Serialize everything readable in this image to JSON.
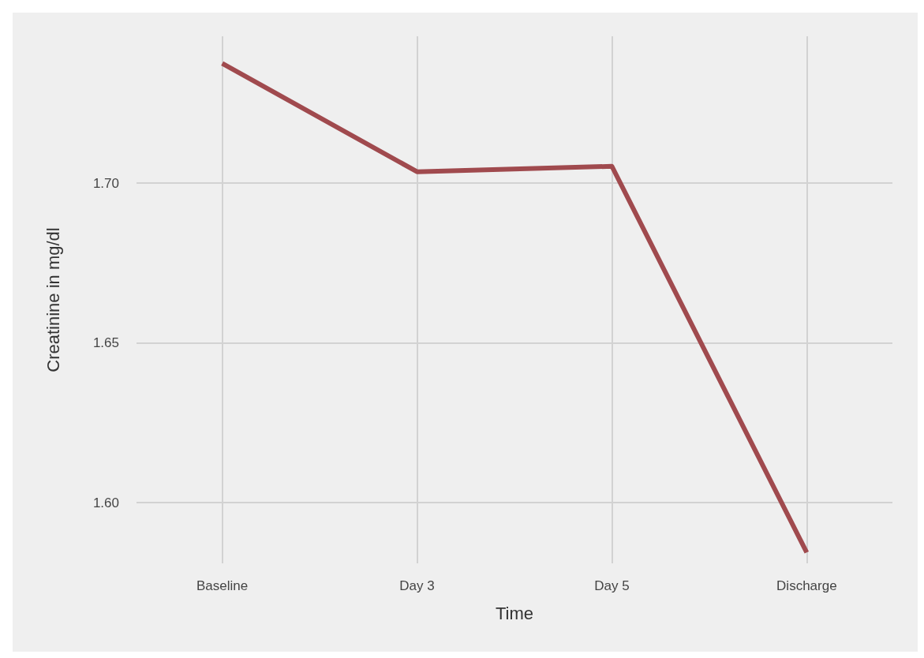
{
  "chart_data": {
    "type": "line",
    "xlabel": "Time",
    "ylabel": "Creatinine in mg/dl",
    "categories": [
      "Baseline",
      "Day 3",
      "Day 5",
      "Discharge"
    ],
    "series": [
      {
        "color": "#a04a4e",
        "values": [
          1.7375,
          1.7036,
          1.7053,
          1.5844
        ]
      }
    ],
    "ylim": [
      1.581,
      1.746
    ],
    "yticks": [
      {
        "value": 1.6,
        "label": "1.60"
      },
      1.65,
      {
        "value": 1.7,
        "label": "1.70"
      }
    ],
    "grid": true,
    "marker": "none",
    "line_style": "solid"
  }
}
